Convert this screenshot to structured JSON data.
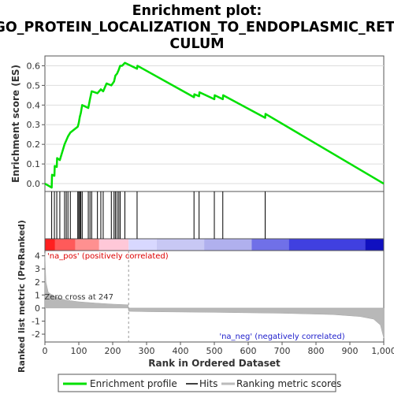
{
  "chart_data": {
    "type": "line",
    "title_lines": [
      "Enrichment plot:",
      "GO_PROTEIN_LOCALIZATION_TO_ENDOPLASMIC_RETI",
      "CULUM"
    ],
    "xlabel": "Rank in Ordered Dataset",
    "ylabel_top": "Enrichment score (ES)",
    "ylabel_bottom": "Ranked list metric (PreRanked)",
    "xlim": [
      0,
      1000
    ],
    "xticks": [
      "0",
      "100",
      "200",
      "300",
      "400",
      "500",
      "600",
      "700",
      "800",
      "900",
      "1,000"
    ],
    "es_ylim": [
      -0.04,
      0.65
    ],
    "es_yticks": [
      "0.0",
      "0.1",
      "0.2",
      "0.3",
      "0.4",
      "0.5",
      "0.6"
    ],
    "metric_ylim": [
      -2.6,
      4.4
    ],
    "metric_yticks": [
      "4",
      "3",
      "2",
      "1",
      "0",
      "-1",
      "-2"
    ],
    "es_color": "#00e000",
    "hits": [
      20,
      28,
      35,
      44,
      58,
      63,
      68,
      75,
      97,
      100,
      103,
      106,
      110,
      128,
      133,
      138,
      155,
      165,
      172,
      196,
      204,
      208,
      213,
      218,
      222,
      236,
      272,
      440,
      455,
      500,
      525,
      650
    ],
    "es_profile": [
      [
        0,
        0.0
      ],
      [
        20,
        -0.02
      ],
      [
        21,
        0.045
      ],
      [
        28,
        0.04
      ],
      [
        29,
        0.09
      ],
      [
        35,
        0.085
      ],
      [
        36,
        0.13
      ],
      [
        44,
        0.12
      ],
      [
        58,
        0.2
      ],
      [
        63,
        0.22
      ],
      [
        68,
        0.24
      ],
      [
        75,
        0.26
      ],
      [
        97,
        0.29
      ],
      [
        100,
        0.31
      ],
      [
        103,
        0.34
      ],
      [
        106,
        0.36
      ],
      [
        110,
        0.4
      ],
      [
        128,
        0.385
      ],
      [
        133,
        0.43
      ],
      [
        138,
        0.47
      ],
      [
        155,
        0.46
      ],
      [
        165,
        0.48
      ],
      [
        172,
        0.47
      ],
      [
        182,
        0.51
      ],
      [
        196,
        0.5
      ],
      [
        204,
        0.52
      ],
      [
        208,
        0.55
      ],
      [
        213,
        0.56
      ],
      [
        218,
        0.58
      ],
      [
        222,
        0.6
      ],
      [
        228,
        0.6
      ],
      [
        236,
        0.615
      ],
      [
        272,
        0.585
      ],
      [
        273,
        0.6
      ],
      [
        440,
        0.44
      ],
      [
        441,
        0.455
      ],
      [
        455,
        0.445
      ],
      [
        456,
        0.465
      ],
      [
        500,
        0.43
      ],
      [
        501,
        0.45
      ],
      [
        525,
        0.43
      ],
      [
        526,
        0.45
      ],
      [
        650,
        0.335
      ],
      [
        651,
        0.355
      ],
      [
        1000,
        0.0
      ]
    ],
    "metric_profile": [
      [
        0,
        4.2
      ],
      [
        3,
        2.0
      ],
      [
        10,
        1.2
      ],
      [
        30,
        0.85
      ],
      [
        60,
        0.62
      ],
      [
        100,
        0.48
      ],
      [
        150,
        0.38
      ],
      [
        200,
        0.3
      ],
      [
        246,
        0.25
      ],
      [
        247,
        -0.25
      ],
      [
        300,
        -0.28
      ],
      [
        500,
        -0.33
      ],
      [
        700,
        -0.4
      ],
      [
        850,
        -0.5
      ],
      [
        930,
        -0.65
      ],
      [
        970,
        -0.85
      ],
      [
        990,
        -1.3
      ],
      [
        997,
        -2.0
      ],
      [
        1000,
        -2.3
      ]
    ],
    "heatmap_bands": [
      [
        0,
        30,
        "#ff2020"
      ],
      [
        30,
        90,
        "#ff5a5a"
      ],
      [
        90,
        160,
        "#ff9090"
      ],
      [
        160,
        247,
        "#ffc8d8"
      ],
      [
        247,
        330,
        "#d8d8ff"
      ],
      [
        330,
        470,
        "#c8c8f4"
      ],
      [
        470,
        610,
        "#b0b0ee"
      ],
      [
        610,
        720,
        "#7070e8"
      ],
      [
        720,
        945,
        "#4040e0"
      ],
      [
        945,
        1000,
        "#1010c0"
      ]
    ],
    "pos_label": "'na_pos' (positively correlated)",
    "neg_label": "'na_neg' (negatively correlated)",
    "zero_cross_label": "Zero cross at 247",
    "zero_cross": 247,
    "legend": [
      "Enrichment profile",
      "Hits",
      "Ranking metric scores"
    ]
  }
}
